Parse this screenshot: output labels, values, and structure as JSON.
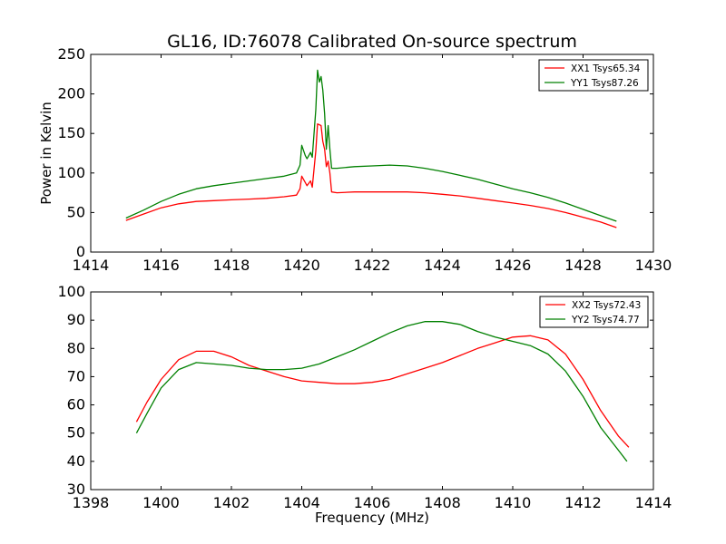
{
  "title": "GL16, ID:76078 Calibrated On-source spectrum",
  "chart_data": [
    {
      "type": "line",
      "ylabel": "Power in Kelvin",
      "xlabel": "",
      "xlim": [
        1414,
        1430
      ],
      "ylim": [
        0,
        250
      ],
      "xticks": [
        1414,
        1416,
        1418,
        1420,
        1422,
        1424,
        1426,
        1428,
        1430
      ],
      "yticks": [
        0,
        50,
        100,
        150,
        200,
        250
      ],
      "legend_position": "top-right",
      "series": [
        {
          "name": "XX1 Tsys65.34",
          "color": "#ff0000",
          "x": [
            1415.0,
            1415.5,
            1416.0,
            1416.5,
            1417.0,
            1417.5,
            1418.0,
            1418.5,
            1419.0,
            1419.5,
            1419.85,
            1419.95,
            1420.0,
            1420.1,
            1420.15,
            1420.25,
            1420.3,
            1420.4,
            1420.45,
            1420.55,
            1420.6,
            1420.65,
            1420.7,
            1420.75,
            1420.8,
            1420.85,
            1421.0,
            1421.5,
            1422.0,
            1422.5,
            1423.0,
            1423.5,
            1424.0,
            1424.5,
            1425.0,
            1425.5,
            1426.0,
            1426.5,
            1427.0,
            1427.5,
            1428.0,
            1428.5,
            1428.95
          ],
          "y": [
            40,
            48,
            56,
            61,
            64,
            65,
            66,
            67,
            68,
            70,
            72,
            80,
            96,
            88,
            84,
            90,
            82,
            128,
            162,
            160,
            140,
            130,
            108,
            115,
            100,
            76,
            75,
            76,
            76,
            76,
            76,
            75,
            73,
            71,
            68,
            65,
            62,
            59,
            55,
            50,
            44,
            38,
            31
          ]
        },
        {
          "name": "YY1 Tsys87.26",
          "color": "#008000",
          "x": [
            1415.0,
            1415.5,
            1416.0,
            1416.5,
            1417.0,
            1417.5,
            1418.0,
            1418.5,
            1419.0,
            1419.5,
            1419.85,
            1419.95,
            1420.0,
            1420.1,
            1420.15,
            1420.25,
            1420.3,
            1420.4,
            1420.45,
            1420.5,
            1420.55,
            1420.6,
            1420.65,
            1420.7,
            1420.75,
            1420.8,
            1420.85,
            1421.0,
            1421.5,
            1422.0,
            1422.5,
            1423.0,
            1423.5,
            1424.0,
            1424.5,
            1425.0,
            1425.5,
            1426.0,
            1426.5,
            1427.0,
            1427.5,
            1428.0,
            1428.5,
            1428.95
          ],
          "y": [
            43,
            53,
            64,
            73,
            80,
            84,
            87,
            90,
            93,
            96,
            100,
            110,
            135,
            122,
            118,
            126,
            120,
            180,
            230,
            215,
            222,
            205,
            175,
            130,
            160,
            130,
            106,
            106,
            108,
            109,
            110,
            109,
            106,
            102,
            97,
            92,
            86,
            80,
            75,
            69,
            62,
            54,
            46,
            39
          ]
        }
      ]
    },
    {
      "type": "line",
      "ylabel": "",
      "xlabel": "Frequency (MHz)",
      "xlim": [
        1398,
        1414
      ],
      "ylim": [
        30,
        100
      ],
      "xticks": [
        1398,
        1400,
        1402,
        1404,
        1406,
        1408,
        1410,
        1412,
        1414
      ],
      "yticks": [
        30,
        40,
        50,
        60,
        70,
        80,
        90,
        100
      ],
      "legend_position": "top-right",
      "series": [
        {
          "name": "XX2 Tsys72.43",
          "color": "#ff0000",
          "x": [
            1399.3,
            1399.6,
            1400.0,
            1400.5,
            1401.0,
            1401.5,
            1402.0,
            1402.5,
            1403.0,
            1403.5,
            1404.0,
            1404.5,
            1405.0,
            1405.5,
            1406.0,
            1406.5,
            1407.0,
            1407.5,
            1408.0,
            1408.5,
            1409.0,
            1409.5,
            1410.0,
            1410.5,
            1411.0,
            1411.5,
            1412.0,
            1412.5,
            1413.0,
            1413.3
          ],
          "y": [
            54,
            61,
            69,
            76,
            79,
            79,
            77,
            74,
            72,
            70,
            68.5,
            68,
            67.5,
            67.5,
            68,
            69,
            71,
            73,
            75,
            77.5,
            80,
            82,
            84,
            84.5,
            83,
            78,
            69,
            58,
            49,
            45
          ]
        },
        {
          "name": "YY2 Tsys74.77",
          "color": "#008000",
          "x": [
            1399.3,
            1399.6,
            1400.0,
            1400.5,
            1401.0,
            1401.5,
            1402.0,
            1402.5,
            1403.0,
            1403.5,
            1404.0,
            1404.5,
            1405.0,
            1405.5,
            1406.0,
            1406.5,
            1407.0,
            1407.5,
            1408.0,
            1408.5,
            1409.0,
            1409.5,
            1410.0,
            1410.5,
            1411.0,
            1411.5,
            1412.0,
            1412.5,
            1413.0,
            1413.25
          ],
          "y": [
            50,
            57,
            66,
            72.5,
            75,
            74.5,
            74,
            73,
            72.5,
            72.5,
            73,
            74.5,
            77,
            79.5,
            82.5,
            85.5,
            88,
            89.5,
            89.5,
            88.5,
            86,
            84,
            82.5,
            81,
            78,
            72,
            63,
            52,
            44,
            40
          ]
        }
      ]
    }
  ]
}
